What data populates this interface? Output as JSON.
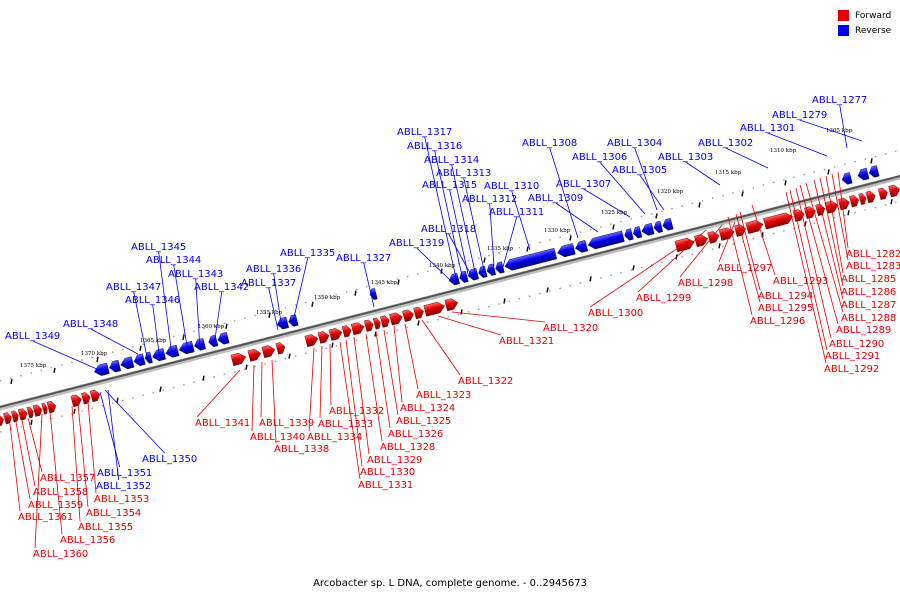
{
  "legend": {
    "forward_label": "Forward",
    "reverse_label": "Reverse",
    "forward_color": "#e00000",
    "reverse_color": "#0000e8"
  },
  "caption": "Arcobacter sp. L DNA, complete genome. - 0..2945673",
  "ruler": {
    "unit": "kbp",
    "ticks_kbp": [
      1305,
      1310,
      1315,
      1320,
      1325,
      1330,
      1335,
      1340,
      1345,
      1350,
      1355,
      1360,
      1365,
      1370,
      1375
    ]
  },
  "reverse_genes": [
    "ABLL_1277",
    "ABLL_1279",
    "ABLL_1301",
    "ABLL_1302",
    "ABLL_1303",
    "ABLL_1304",
    "ABLL_1305",
    "ABLL_1306",
    "ABLL_1307",
    "ABLL_1308",
    "ABLL_1309",
    "ABLL_1310",
    "ABLL_1311",
    "ABLL_1312",
    "ABLL_1313",
    "ABLL_1314",
    "ABLL_1315",
    "ABLL_1316",
    "ABLL_1317",
    "ABLL_1318",
    "ABLL_1319",
    "ABLL_1327",
    "ABLL_1335",
    "ABLL_1336",
    "ABLL_1337",
    "ABLL_1342",
    "ABLL_1343",
    "ABLL_1344",
    "ABLL_1345",
    "ABLL_1346",
    "ABLL_1347",
    "ABLL_1348",
    "ABLL_1349",
    "ABLL_1350",
    "ABLL_1351",
    "ABLL_1352"
  ],
  "forward_genes": [
    "ABLL_1282",
    "ABLL_1283",
    "ABLL_1285",
    "ABLL_1286",
    "ABLL_1287",
    "ABLL_1288",
    "ABLL_1289",
    "ABLL_1290",
    "ABLL_1291",
    "ABLL_1292",
    "ABLL_1293",
    "ABLL_1294",
    "ABLL_1295",
    "ABLL_1296",
    "ABLL_1297",
    "ABLL_1298",
    "ABLL_1299",
    "ABLL_1300",
    "ABLL_1320",
    "ABLL_1321",
    "ABLL_1322",
    "ABLL_1323",
    "ABLL_1324",
    "ABLL_1325",
    "ABLL_1326",
    "ABLL_1328",
    "ABLL_1329",
    "ABLL_1330",
    "ABLL_1331",
    "ABLL_1332",
    "ABLL_1333",
    "ABLL_1334",
    "ABLL_1338",
    "ABLL_1339",
    "ABLL_1340",
    "ABLL_1341",
    "ABLL_1353",
    "ABLL_1354",
    "ABLL_1355",
    "ABLL_1356",
    "ABLL_1357",
    "ABLL_1358",
    "ABLL_1359",
    "ABLL_1360",
    "ABLL_1361"
  ]
}
